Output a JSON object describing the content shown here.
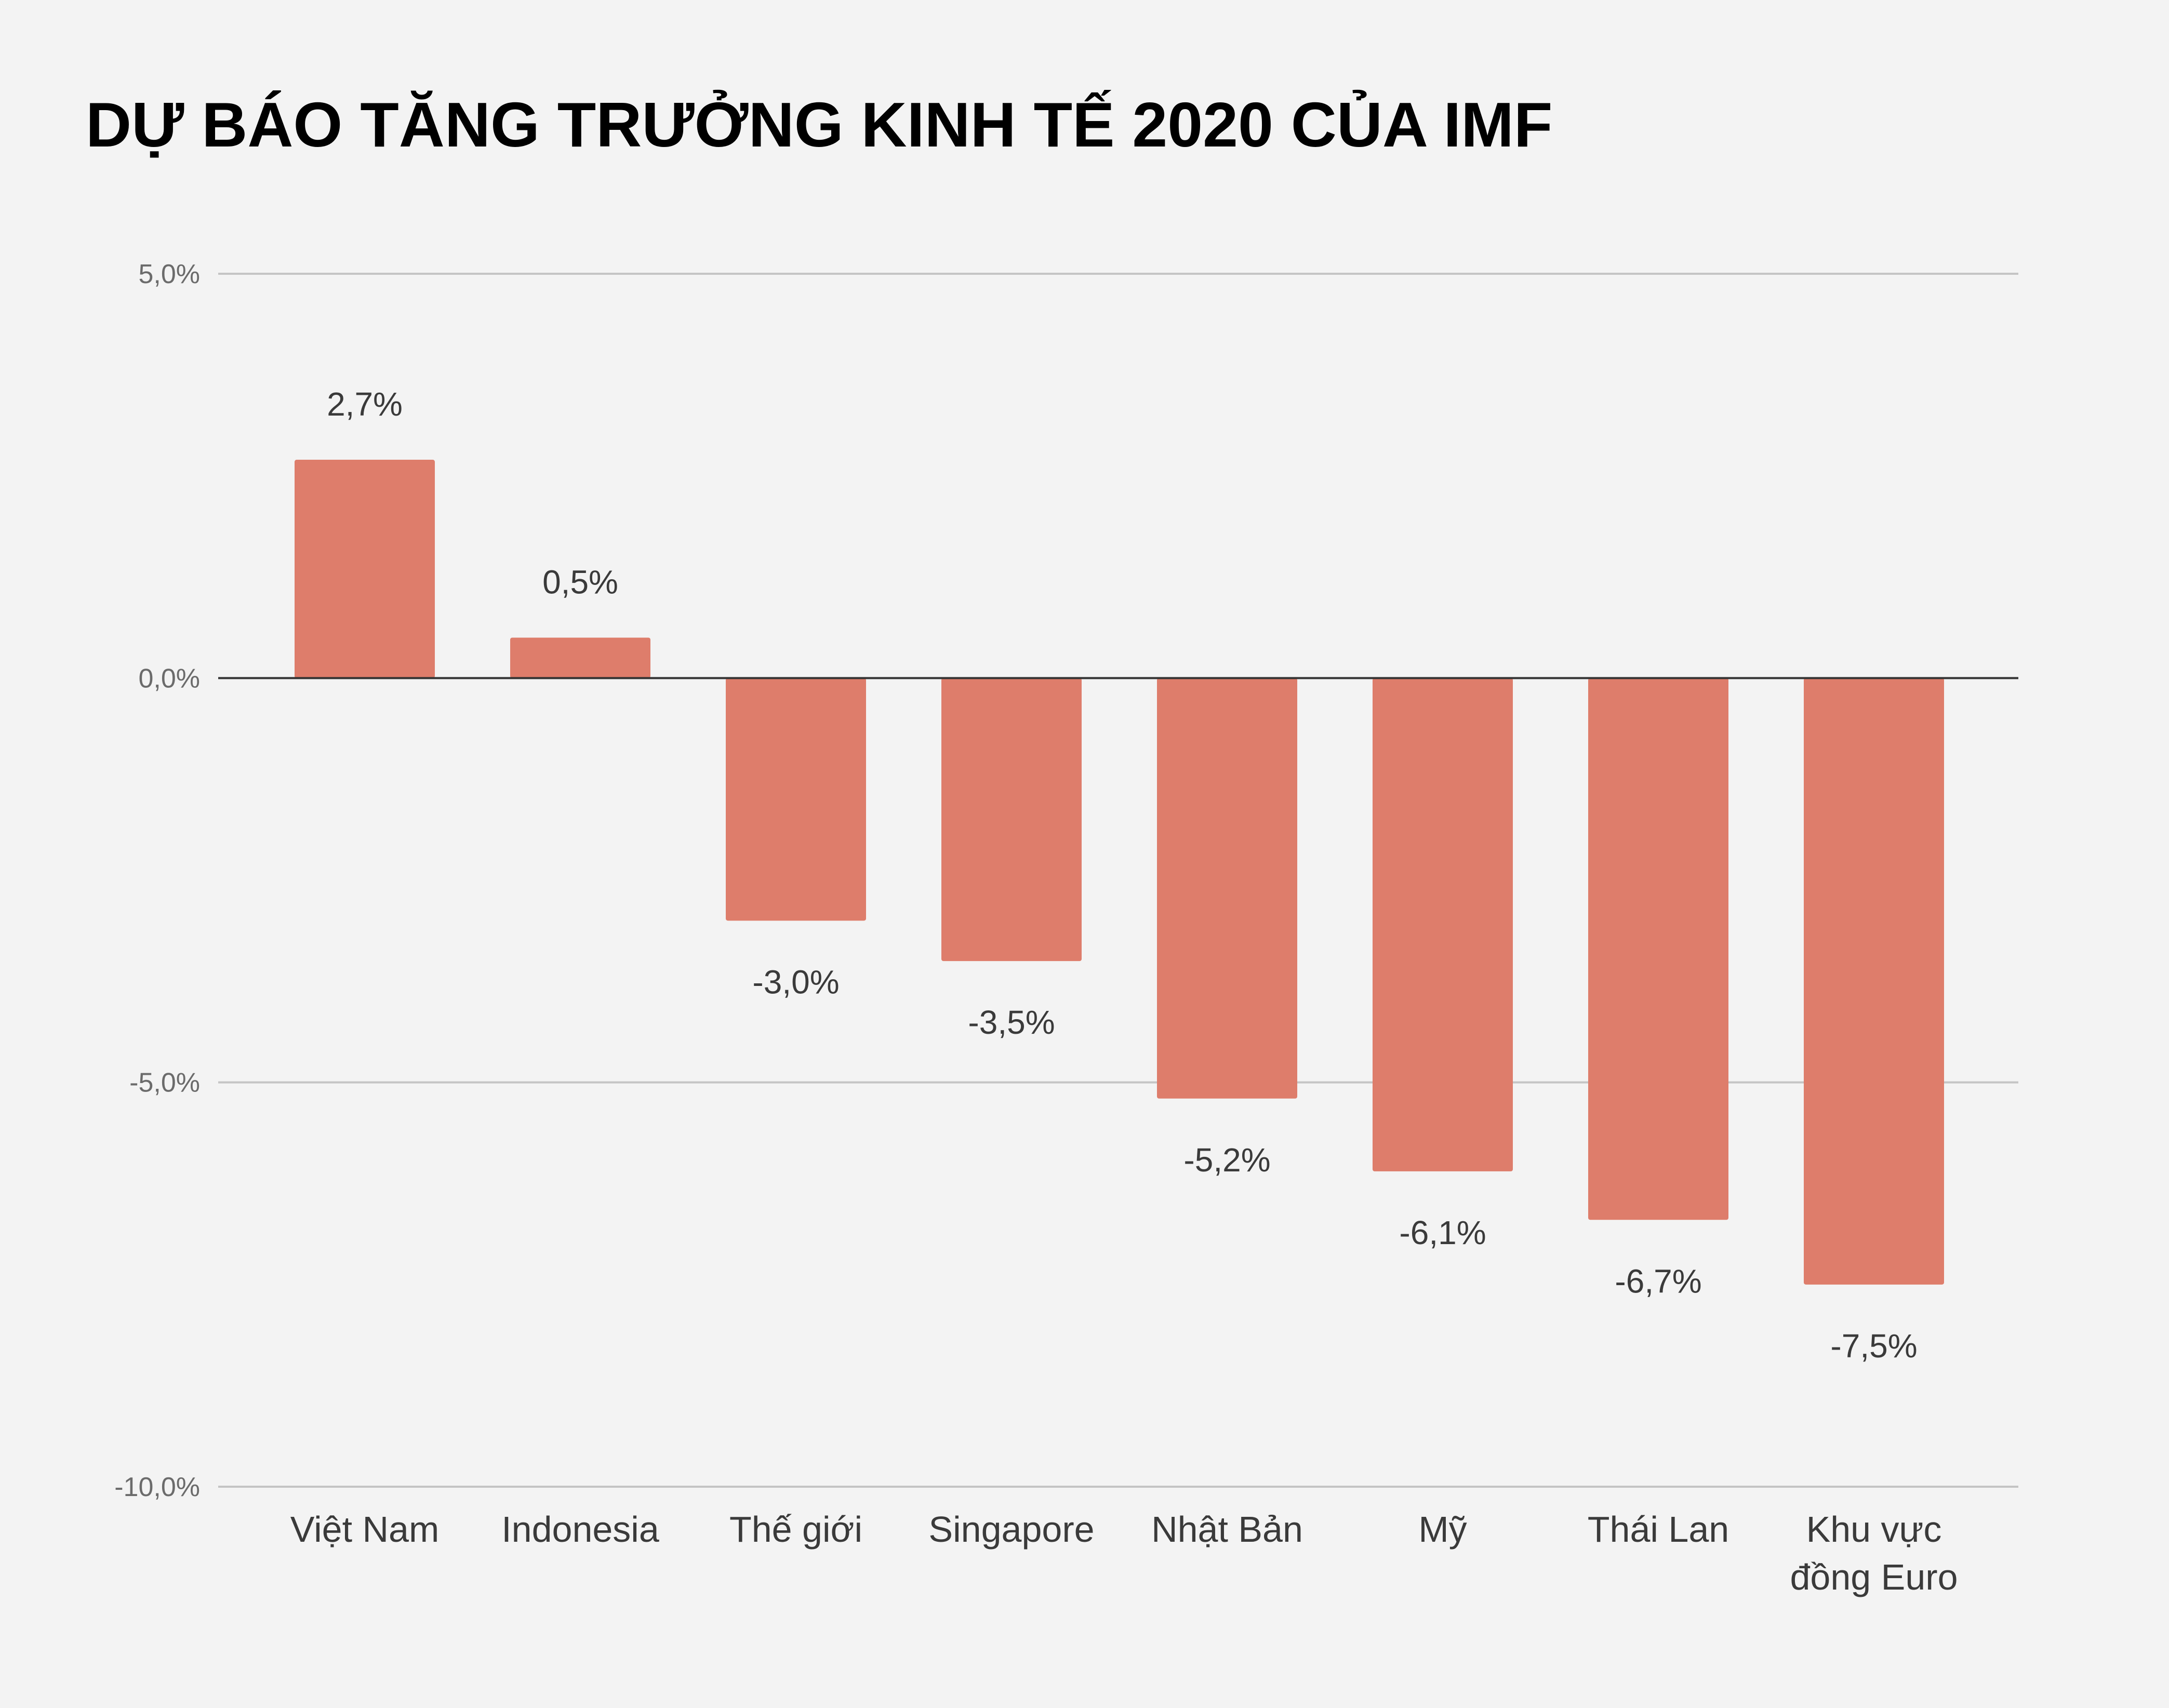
{
  "chart_data": {
    "type": "bar",
    "title": "DỰ BÁO TĂNG TRƯỞNG KINH TẾ 2020 CỦA IMF",
    "xlabel": "",
    "ylabel": "",
    "categories": [
      [
        "Việt Nam"
      ],
      [
        "Indonesia"
      ],
      [
        "Thế giới"
      ],
      [
        "Singapore"
      ],
      [
        "Nhật Bản"
      ],
      [
        "Mỹ"
      ],
      [
        "Thái Lan"
      ],
      [
        "Khu vực",
        "đồng Euro"
      ]
    ],
    "values": [
      2.7,
      0.5,
      -3.0,
      -3.5,
      -5.2,
      -6.1,
      -6.7,
      -7.5
    ],
    "data_labels": [
      "2,7%",
      "0,5%",
      "-3,0%",
      "-3,5%",
      "-5,2%",
      "-6,1%",
      "-6,7%",
      "-7,5%"
    ],
    "ylim": [
      -10,
      5
    ],
    "yticks": [
      5,
      0,
      -5,
      -10
    ],
    "ytick_labels": [
      "5,0%",
      "0,0%",
      "-5,0%",
      "-10,0%"
    ],
    "grid": true,
    "legend": "none",
    "colors": {
      "bar": "#de7d6b",
      "grid": "#c4c4c4",
      "zero_line": "#333333",
      "background": "#f3f3f3"
    }
  }
}
